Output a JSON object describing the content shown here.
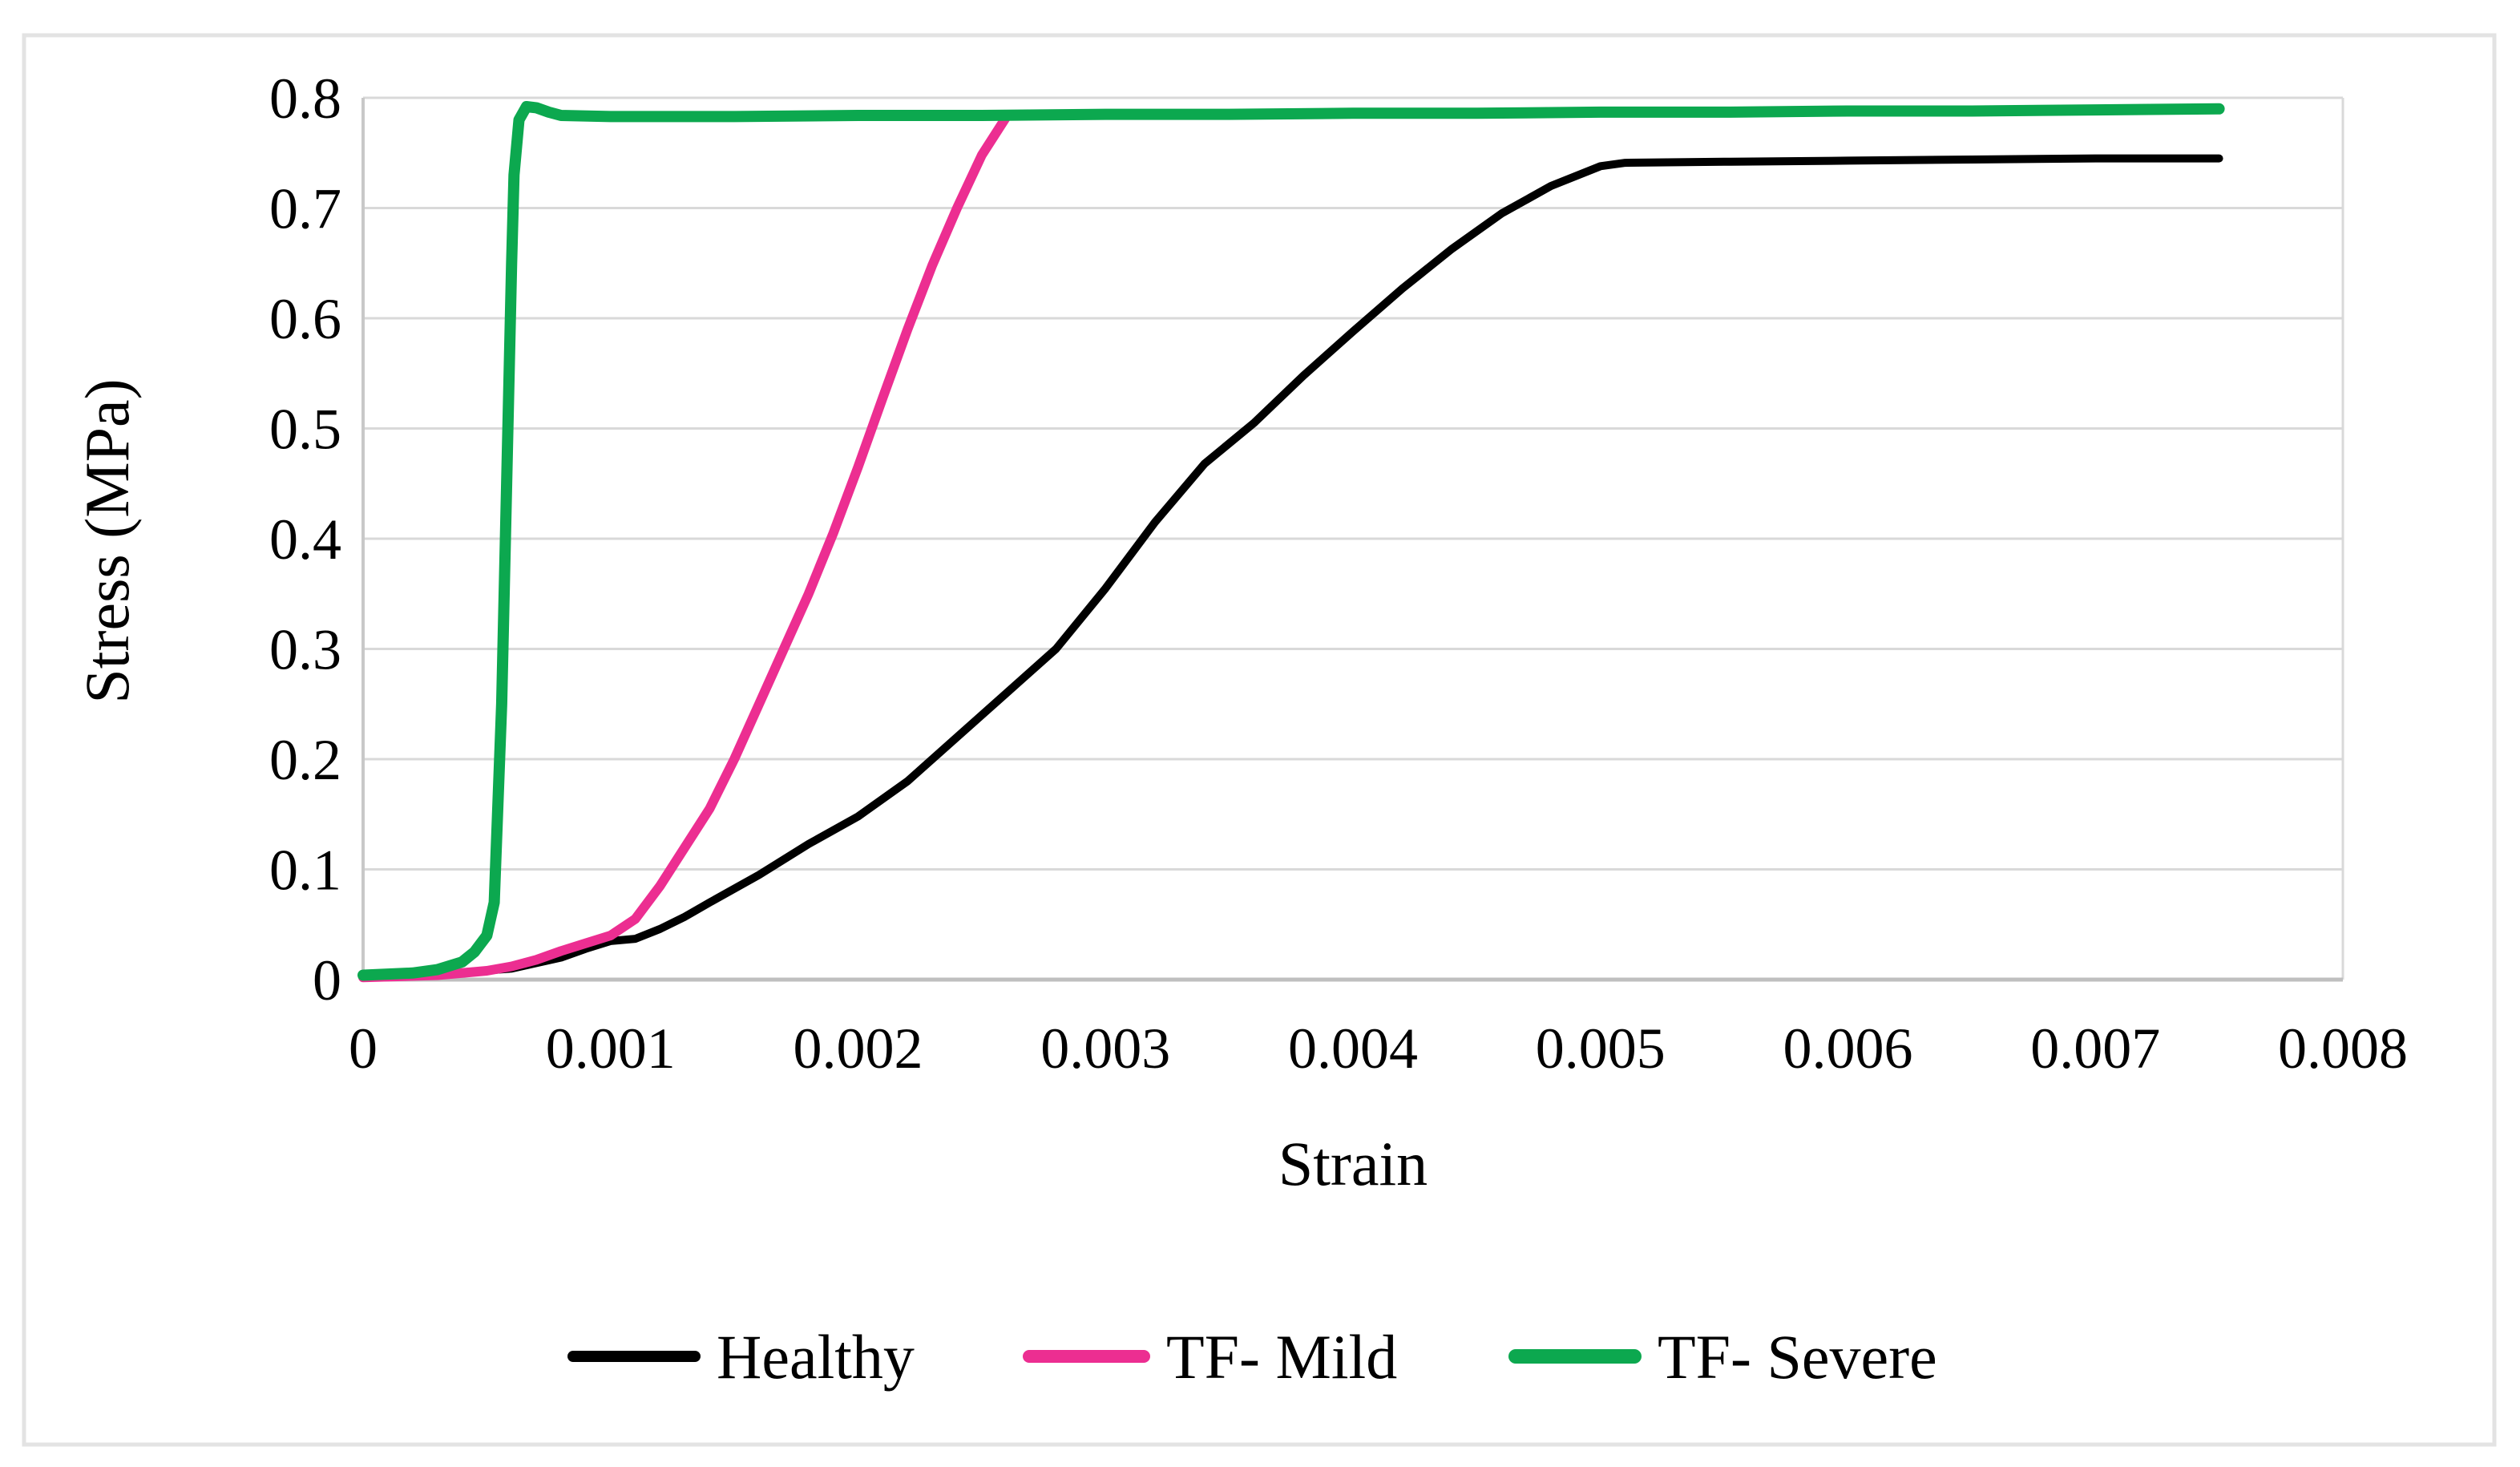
{
  "figure": {
    "background": "#ffffff",
    "frame_color": "#e3e3e3"
  },
  "colors": {
    "gridline": "#d9d9d9",
    "plot_border": "#d9d9d9",
    "left_axis": "#c8c8c8",
    "bottom_axis": "#bfbfbf",
    "text": "#000000"
  },
  "chart_data": {
    "type": "line",
    "title": "",
    "xlabel": "Strain",
    "ylabel": "Stress (MPa)",
    "xlim": [
      0,
      0.008
    ],
    "ylim": [
      0,
      0.8
    ],
    "x_ticks": [
      0,
      0.001,
      0.002,
      0.003,
      0.004,
      0.005,
      0.006,
      0.007,
      0.008
    ],
    "x_tick_labels": [
      "0",
      "0.001",
      "0.002",
      "0.003",
      "0.004",
      "0.005",
      "0.006",
      "0.007",
      "0.008"
    ],
    "y_ticks": [
      0,
      0.1,
      0.2,
      0.3,
      0.4,
      0.5,
      0.6,
      0.7,
      0.8
    ],
    "y_tick_labels": [
      "0",
      "0.1",
      "0.2",
      "0.3",
      "0.4",
      "0.5",
      "0.6",
      "0.7",
      "0.8"
    ],
    "grid": "horizontal",
    "legend_position": "bottom",
    "series": [
      {
        "name": "Healthy",
        "color": "#000000",
        "stroke_width": 10,
        "points": [
          [
            0,
            0.003
          ],
          [
            0.0003,
            0.005
          ],
          [
            0.0006,
            0.01
          ],
          [
            0.0008,
            0.02
          ],
          [
            0.0009,
            0.028
          ],
          [
            0.001,
            0.035
          ],
          [
            0.0011,
            0.037
          ],
          [
            0.0012,
            0.046
          ],
          [
            0.0013,
            0.057
          ],
          [
            0.0014,
            0.07
          ],
          [
            0.0016,
            0.095
          ],
          [
            0.0018,
            0.123
          ],
          [
            0.002,
            0.148
          ],
          [
            0.0022,
            0.18
          ],
          [
            0.0024,
            0.22
          ],
          [
            0.0026,
            0.26
          ],
          [
            0.0028,
            0.3
          ],
          [
            0.003,
            0.355
          ],
          [
            0.0032,
            0.415
          ],
          [
            0.0034,
            0.468
          ],
          [
            0.0036,
            0.505
          ],
          [
            0.0038,
            0.548
          ],
          [
            0.004,
            0.588
          ],
          [
            0.0042,
            0.627
          ],
          [
            0.0044,
            0.663
          ],
          [
            0.0046,
            0.695
          ],
          [
            0.0048,
            0.72
          ],
          [
            0.005,
            0.738
          ],
          [
            0.0051,
            0.741
          ],
          [
            0.0055,
            0.742
          ],
          [
            0.006,
            0.743
          ],
          [
            0.0065,
            0.744
          ],
          [
            0.007,
            0.745
          ],
          [
            0.0075,
            0.745
          ]
        ]
      },
      {
        "name": "TF- Mild",
        "color": "#ec2e91",
        "stroke_width": 12,
        "points": [
          [
            0,
            0.002
          ],
          [
            0.0003,
            0.004
          ],
          [
            0.0005,
            0.008
          ],
          [
            0.0006,
            0.012
          ],
          [
            0.0007,
            0.018
          ],
          [
            0.0008,
            0.026
          ],
          [
            0.0009,
            0.033
          ],
          [
            0.001,
            0.04
          ],
          [
            0.0011,
            0.055
          ],
          [
            0.0012,
            0.085
          ],
          [
            0.0013,
            0.12
          ],
          [
            0.0014,
            0.155
          ],
          [
            0.0015,
            0.2
          ],
          [
            0.0016,
            0.25
          ],
          [
            0.0017,
            0.3
          ],
          [
            0.0018,
            0.35
          ],
          [
            0.0019,
            0.405
          ],
          [
            0.002,
            0.465
          ],
          [
            0.0021,
            0.528
          ],
          [
            0.0022,
            0.59
          ],
          [
            0.0023,
            0.648
          ],
          [
            0.0024,
            0.7
          ],
          [
            0.0025,
            0.748
          ],
          [
            0.0026,
            0.783
          ]
        ]
      },
      {
        "name": "TF- Severe",
        "color": "#0ca84f",
        "stroke_width": 14,
        "points": [
          [
            0,
            0.004
          ],
          [
            0.0002,
            0.006
          ],
          [
            0.0003,
            0.009
          ],
          [
            0.0004,
            0.016
          ],
          [
            0.00045,
            0.025
          ],
          [
            0.0005,
            0.04
          ],
          [
            0.00053,
            0.07
          ],
          [
            0.00056,
            0.25
          ],
          [
            0.00058,
            0.45
          ],
          [
            0.0006,
            0.65
          ],
          [
            0.00061,
            0.73
          ],
          [
            0.00063,
            0.78
          ],
          [
            0.00066,
            0.792
          ],
          [
            0.0007,
            0.791
          ],
          [
            0.00075,
            0.787
          ],
          [
            0.0008,
            0.784
          ],
          [
            0.001,
            0.783
          ],
          [
            0.0015,
            0.783
          ],
          [
            0.002,
            0.784
          ],
          [
            0.0025,
            0.784
          ],
          [
            0.003,
            0.785
          ],
          [
            0.0035,
            0.785
          ],
          [
            0.004,
            0.786
          ],
          [
            0.0045,
            0.786
          ],
          [
            0.005,
            0.787
          ],
          [
            0.0055,
            0.787
          ],
          [
            0.006,
            0.788
          ],
          [
            0.0065,
            0.788
          ],
          [
            0.007,
            0.789
          ],
          [
            0.0075,
            0.79
          ]
        ]
      }
    ],
    "legend": [
      "Healthy",
      "TF- Mild",
      "TF- Severe"
    ]
  }
}
